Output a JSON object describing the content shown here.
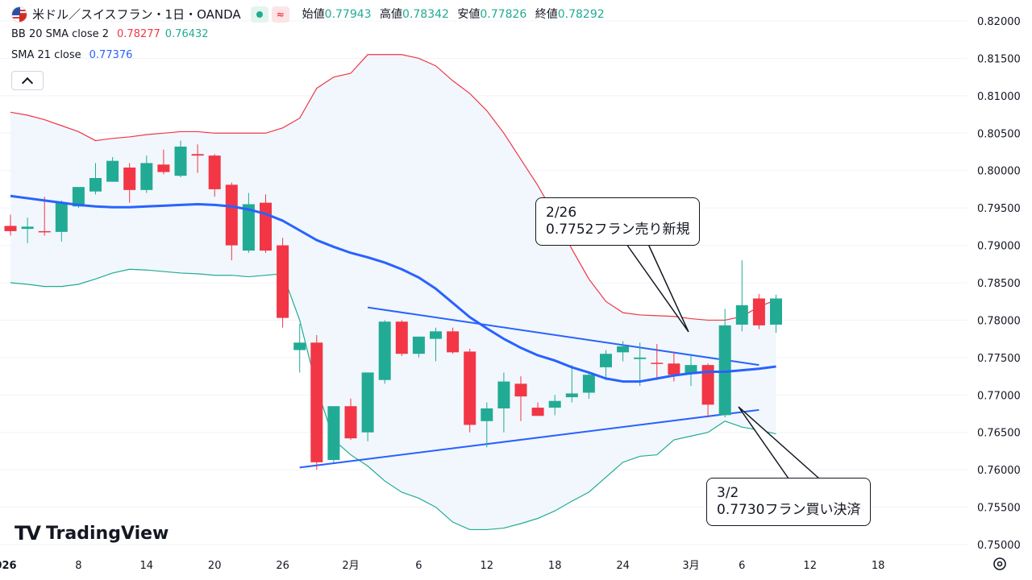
{
  "header": {
    "title": "米ドル／スイスフラン・1日・OANDA",
    "ohlc": [
      {
        "label": "始値",
        "value": "0.77943"
      },
      {
        "label": "高値",
        "value": "0.78342"
      },
      {
        "label": "安値",
        "value": "0.77826"
      },
      {
        "label": "終値",
        "value": "0.78292"
      }
    ]
  },
  "indicators": {
    "bb": {
      "name": "BB 20 SMA close 2",
      "upper": "0.78277",
      "lower": "0.76432"
    },
    "sma": {
      "name": "SMA 21 close",
      "value": "0.77376"
    }
  },
  "annotations": [
    {
      "line1": "2/26",
      "line2": "0.7752フラン売り新規"
    },
    {
      "line1": "3/2",
      "line2": "0.7730フラン買い決済"
    }
  ],
  "logo": {
    "text": "TradingView"
  },
  "colors": {
    "up": "#22ab94",
    "down": "#f23645",
    "sma": "#2962ff",
    "bb_upper": "#f23645",
    "bb_lower": "#22ab94",
    "bb_fill": "#eef5fd"
  },
  "chart_data": {
    "type": "candlestick",
    "price_axis": {
      "min": 0.75,
      "max": 0.82,
      "ticks": [
        "0.82000",
        "0.81500",
        "0.81000",
        "0.80500",
        "0.80000",
        "0.79500",
        "0.79000",
        "0.78500",
        "0.78000",
        "0.77500",
        "0.77000",
        "0.76500",
        "0.76000",
        "0.75500",
        "0.75000"
      ]
    },
    "time_axis": {
      "ticks": [
        {
          "label": "2026",
          "bar": -0.5,
          "bold": true
        },
        {
          "label": "8",
          "bar": 4
        },
        {
          "label": "14",
          "bar": 8
        },
        {
          "label": "20",
          "bar": 12
        },
        {
          "label": "26",
          "bar": 16
        },
        {
          "label": "2月",
          "bar": 20
        },
        {
          "label": "6",
          "bar": 24
        },
        {
          "label": "12",
          "bar": 28
        },
        {
          "label": "18",
          "bar": 32
        },
        {
          "label": "24",
          "bar": 36
        },
        {
          "label": "3月",
          "bar": 40
        },
        {
          "label": "6",
          "bar": 43
        },
        {
          "label": "12",
          "bar": 47
        },
        {
          "label": "18",
          "bar": 51
        }
      ]
    },
    "candles": [
      {
        "o": 0.7926,
        "h": 0.7941,
        "l": 0.7913,
        "c": 0.7919
      },
      {
        "o": 0.7922,
        "h": 0.7937,
        "l": 0.7903,
        "c": 0.7925
      },
      {
        "o": 0.7919,
        "h": 0.7965,
        "l": 0.7913,
        "c": 0.7918
      },
      {
        "o": 0.7918,
        "h": 0.796,
        "l": 0.7905,
        "c": 0.7957
      },
      {
        "o": 0.7952,
        "h": 0.7976,
        "l": 0.795,
        "c": 0.7978
      },
      {
        "o": 0.7972,
        "h": 0.801,
        "l": 0.7968,
        "c": 0.799
      },
      {
        "o": 0.7985,
        "h": 0.8018,
        "l": 0.7985,
        "c": 0.8013
      },
      {
        "o": 0.8004,
        "h": 0.801,
        "l": 0.7957,
        "c": 0.7974
      },
      {
        "o": 0.7974,
        "h": 0.802,
        "l": 0.797,
        "c": 0.801
      },
      {
        "o": 0.8008,
        "h": 0.8028,
        "l": 0.7995,
        "c": 0.7998
      },
      {
        "o": 0.7993,
        "h": 0.804,
        "l": 0.7991,
        "c": 0.8032
      },
      {
        "o": 0.8022,
        "h": 0.8035,
        "l": 0.7997,
        "c": 0.802
      },
      {
        "o": 0.802,
        "h": 0.8022,
        "l": 0.7965,
        "c": 0.7975
      },
      {
        "o": 0.7981,
        "h": 0.7984,
        "l": 0.788,
        "c": 0.79
      },
      {
        "o": 0.7893,
        "h": 0.797,
        "l": 0.789,
        "c": 0.7955
      },
      {
        "o": 0.7957,
        "h": 0.7968,
        "l": 0.789,
        "c": 0.7893
      },
      {
        "o": 0.79,
        "h": 0.791,
        "l": 0.779,
        "c": 0.7803
      },
      {
        "o": 0.776,
        "h": 0.7795,
        "l": 0.773,
        "c": 0.777
      },
      {
        "o": 0.777,
        "h": 0.778,
        "l": 0.76,
        "c": 0.761
      },
      {
        "o": 0.7613,
        "h": 0.7685,
        "l": 0.761,
        "c": 0.7685
      },
      {
        "o": 0.7685,
        "h": 0.7695,
        "l": 0.764,
        "c": 0.7642
      },
      {
        "o": 0.765,
        "h": 0.773,
        "l": 0.7638,
        "c": 0.773
      },
      {
        "o": 0.772,
        "h": 0.78,
        "l": 0.7715,
        "c": 0.7798
      },
      {
        "o": 0.7798,
        "h": 0.78,
        "l": 0.7752,
        "c": 0.7755
      },
      {
        "o": 0.7755,
        "h": 0.7778,
        "l": 0.775,
        "c": 0.7778
      },
      {
        "o": 0.7775,
        "h": 0.779,
        "l": 0.7745,
        "c": 0.7785
      },
      {
        "o": 0.7785,
        "h": 0.779,
        "l": 0.7755,
        "c": 0.7757
      },
      {
        "o": 0.7758,
        "h": 0.7762,
        "l": 0.765,
        "c": 0.766
      },
      {
        "o": 0.7665,
        "h": 0.769,
        "l": 0.763,
        "c": 0.7682
      },
      {
        "o": 0.7682,
        "h": 0.773,
        "l": 0.765,
        "c": 0.7718
      },
      {
        "o": 0.7715,
        "h": 0.7725,
        "l": 0.7665,
        "c": 0.7698
      },
      {
        "o": 0.7683,
        "h": 0.769,
        "l": 0.7675,
        "c": 0.7672
      },
      {
        "o": 0.7683,
        "h": 0.77,
        "l": 0.7673,
        "c": 0.7692
      },
      {
        "o": 0.7697,
        "h": 0.774,
        "l": 0.769,
        "c": 0.7702
      },
      {
        "o": 0.7703,
        "h": 0.773,
        "l": 0.7695,
        "c": 0.7727
      },
      {
        "o": 0.7737,
        "h": 0.776,
        "l": 0.772,
        "c": 0.7755
      },
      {
        "o": 0.7757,
        "h": 0.7772,
        "l": 0.7745,
        "c": 0.7765
      },
      {
        "o": 0.7748,
        "h": 0.777,
        "l": 0.7712,
        "c": 0.775
      },
      {
        "o": 0.7743,
        "h": 0.7768,
        "l": 0.772,
        "c": 0.7742
      },
      {
        "o": 0.7742,
        "h": 0.7758,
        "l": 0.7718,
        "c": 0.7727
      },
      {
        "o": 0.7728,
        "h": 0.7755,
        "l": 0.7712,
        "c": 0.774
      },
      {
        "o": 0.774,
        "h": 0.7742,
        "l": 0.767,
        "c": 0.7687
      },
      {
        "o": 0.7673,
        "h": 0.7815,
        "l": 0.767,
        "c": 0.7793
      },
      {
        "o": 0.7794,
        "h": 0.788,
        "l": 0.7785,
        "c": 0.782
      },
      {
        "o": 0.7829,
        "h": 0.7835,
        "l": 0.7788,
        "c": 0.7793
      },
      {
        "o": 0.7794,
        "h": 0.7834,
        "l": 0.7783,
        "c": 0.7829
      }
    ],
    "sma21": [
      0.7966,
      0.7963,
      0.796,
      0.7957,
      0.7954,
      0.7952,
      0.7951,
      0.7951,
      0.7952,
      0.7953,
      0.7954,
      0.7955,
      0.7954,
      0.7952,
      0.7948,
      0.7942,
      0.7933,
      0.792,
      0.7907,
      0.7898,
      0.789,
      0.7884,
      0.7877,
      0.7868,
      0.7857,
      0.7842,
      0.7823,
      0.7804,
      0.7789,
      0.7775,
      0.7763,
      0.7753,
      0.7746,
      0.7737,
      0.773,
      0.7722,
      0.7718,
      0.7718,
      0.7722,
      0.7726,
      0.7729,
      0.7731,
      0.7731,
      0.7733,
      0.7735,
      0.7738
    ],
    "bb_upper": [
      0.8078,
      0.8074,
      0.8068,
      0.806,
      0.8052,
      0.804,
      0.8043,
      0.8045,
      0.8048,
      0.805,
      0.8052,
      0.8052,
      0.805,
      0.805,
      0.805,
      0.805,
      0.8057,
      0.807,
      0.811,
      0.8125,
      0.813,
      0.8155,
      0.8155,
      0.8155,
      0.815,
      0.814,
      0.812,
      0.8103,
      0.808,
      0.805,
      0.8015,
      0.798,
      0.794,
      0.7895,
      0.7855,
      0.7825,
      0.781,
      0.7807,
      0.7806,
      0.7805,
      0.7802,
      0.78,
      0.78,
      0.7805,
      0.7818,
      0.7827
    ],
    "bb_lower": [
      0.785,
      0.7848,
      0.7845,
      0.7845,
      0.7848,
      0.7855,
      0.7863,
      0.7868,
      0.7867,
      0.7865,
      0.7863,
      0.7862,
      0.786,
      0.786,
      0.7858,
      0.786,
      0.7862,
      0.78,
      0.771,
      0.764,
      0.762,
      0.7605,
      0.7585,
      0.757,
      0.7562,
      0.755,
      0.753,
      0.752,
      0.752,
      0.7522,
      0.7528,
      0.7535,
      0.7545,
      0.7558,
      0.757,
      0.759,
      0.761,
      0.7618,
      0.762,
      0.764,
      0.7645,
      0.765,
      0.7665,
      0.7657,
      0.7653,
      0.7648
    ],
    "trendlines": [
      {
        "from": {
          "bar": 21,
          "price": 0.7817
        },
        "to": {
          "bar": 44,
          "price": 0.774
        }
      },
      {
        "from": {
          "bar": 17,
          "price": 0.7603
        },
        "to": {
          "bar": 44,
          "price": 0.768
        }
      }
    ]
  }
}
